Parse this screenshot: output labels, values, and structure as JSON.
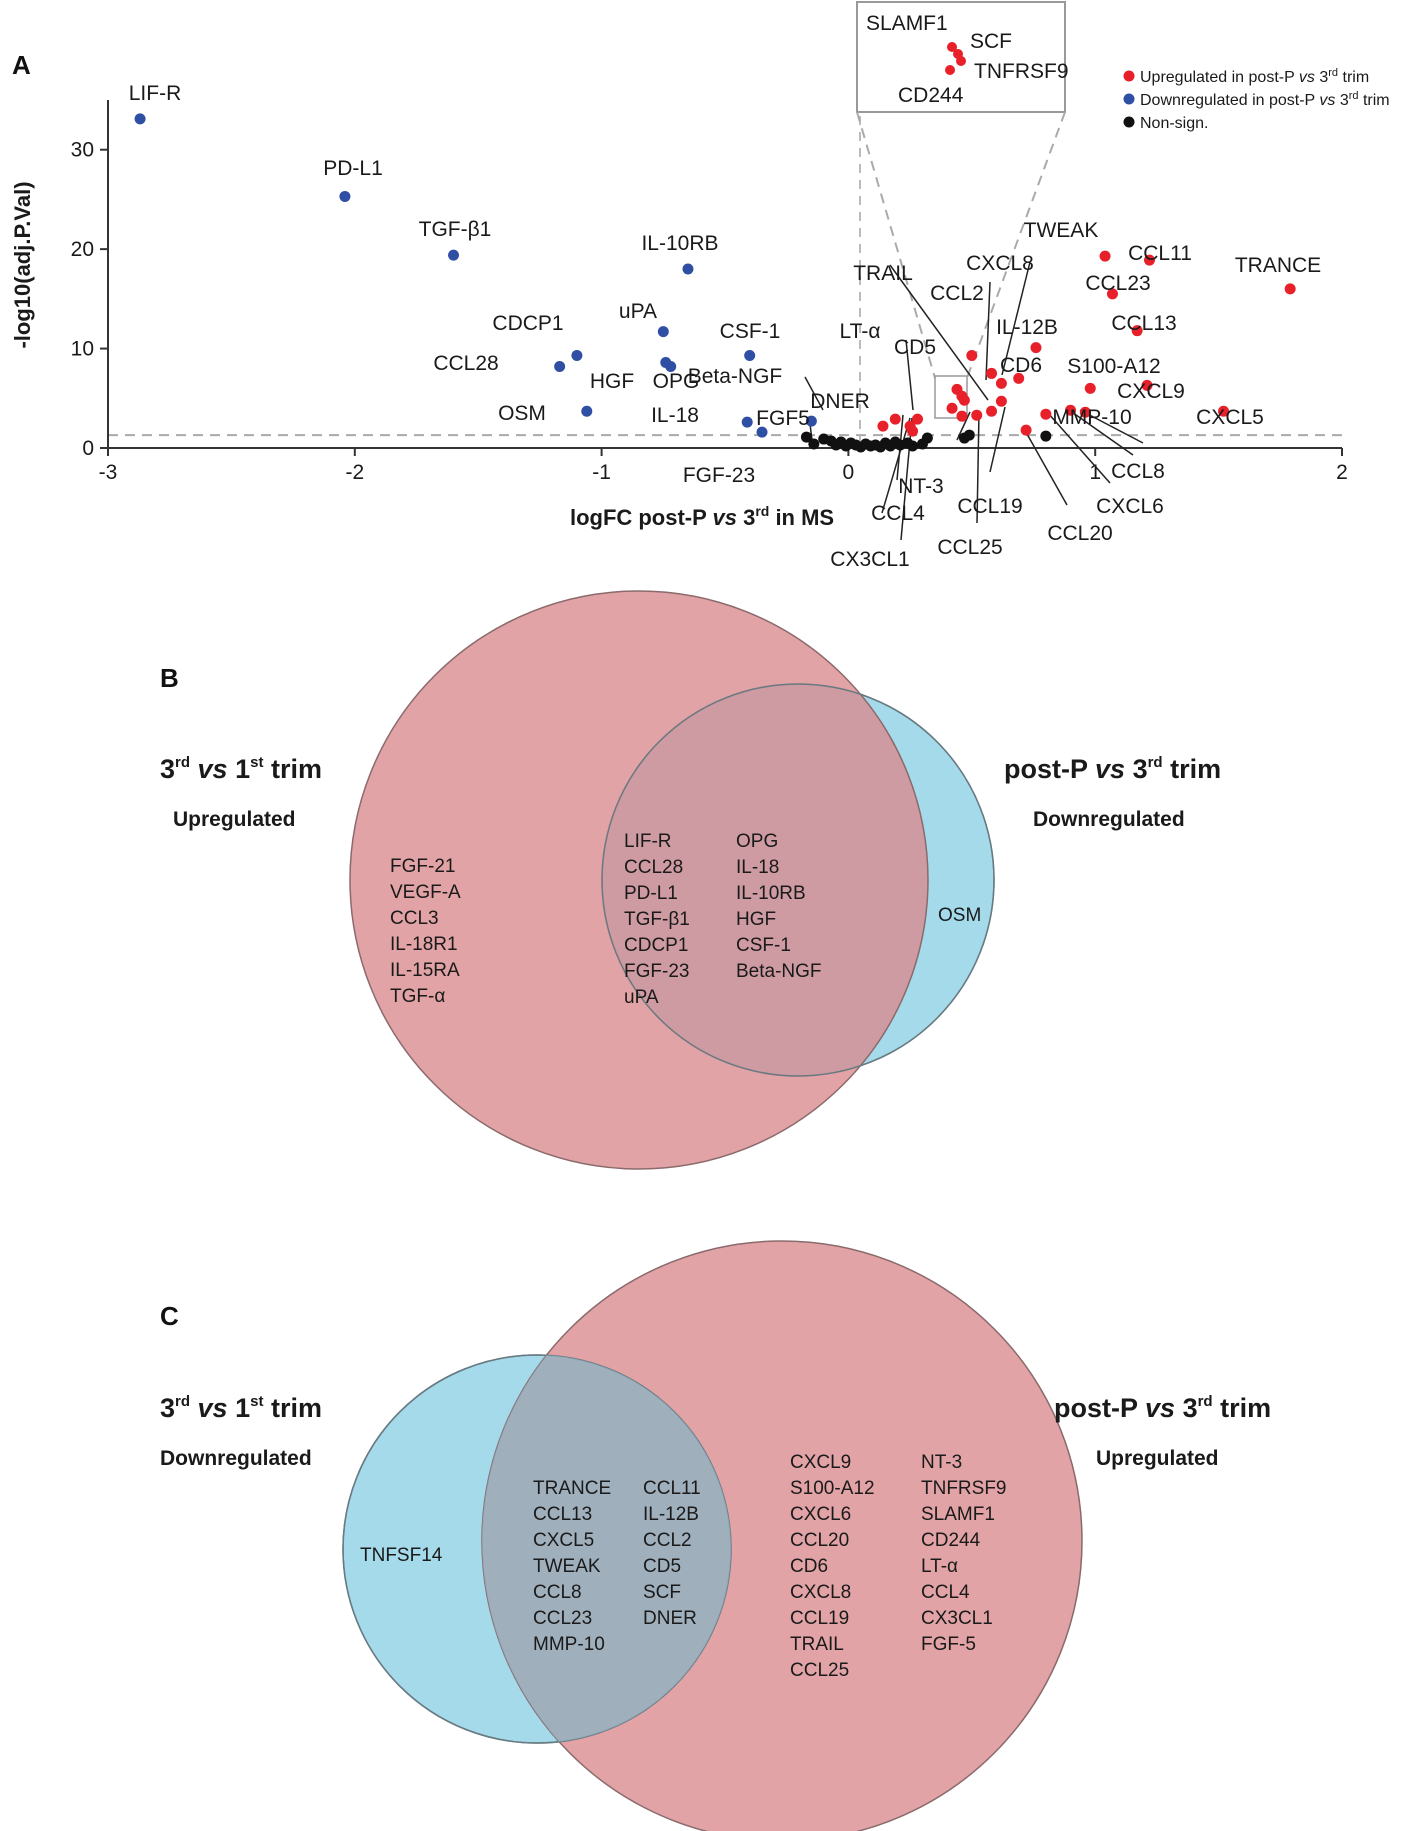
{
  "chart_data": [
    {
      "type": "scatter",
      "panel": "A",
      "xlabel_main": "logFC",
      "xlabel_rest": "post-P vs 3rd in MS",
      "ylabel": "-log10(adj.P.Val)",
      "xlim": [
        -3,
        2
      ],
      "ylim": [
        0,
        35
      ],
      "xticks": [
        -3,
        -2,
        -1,
        0,
        1,
        2
      ],
      "yticks": [
        0,
        10,
        20,
        30
      ],
      "threshold_y": 1.3,
      "legend": [
        {
          "label": "Upregulated in post-P vs 3rd trim",
          "color": "#e8202a"
        },
        {
          "label": "Downregulated in post-P vs 3rd trim",
          "color": "#2e4fa3"
        },
        {
          "label": "Non-sign.",
          "color": "#111111"
        }
      ],
      "inset_labels": [
        "SLAMF1",
        "SCF",
        "TNFRSF9",
        "CD244"
      ],
      "series": [
        {
          "name": "Downregulated",
          "color": "#2e4fa3",
          "points": [
            {
              "label": "LIF-R",
              "x": -2.87,
              "y": 33.1
            },
            {
              "label": "PD-L1",
              "x": -2.04,
              "y": 25.3
            },
            {
              "label": "TGF-β1",
              "x": -1.6,
              "y": 19.4
            },
            {
              "label": "IL-10RB",
              "x": -0.65,
              "y": 18.0
            },
            {
              "label": "uPA",
              "x": -0.75,
              "y": 11.7
            },
            {
              "label": "CDCP1",
              "x": -1.1,
              "y": 9.3
            },
            {
              "label": "CCL28",
              "x": -1.17,
              "y": 8.2
            },
            {
              "label": "HGF",
              "x": -0.74,
              "y": 8.6
            },
            {
              "label": "OPG",
              "x": -0.72,
              "y": 8.2
            },
            {
              "label": "CSF-1",
              "x": -0.4,
              "y": 9.3
            },
            {
              "label": "OSM",
              "x": -1.06,
              "y": 3.7
            },
            {
              "label": "IL-18",
              "x": -0.41,
              "y": 2.6
            },
            {
              "label": "FGF-23",
              "x": -0.35,
              "y": 1.6
            },
            {
              "label": "Beta-NGF",
              "x": -0.15,
              "y": 2.7
            }
          ]
        },
        {
          "name": "Upregulated",
          "color": "#e8202a",
          "points": [
            {
              "label": "TRANCE",
              "x": 1.79,
              "y": 16.0
            },
            {
              "label": "TWEAK",
              "x": 1.04,
              "y": 19.3
            },
            {
              "label": "CCL11",
              "x": 1.22,
              "y": 18.9
            },
            {
              "label": "CCL23",
              "x": 1.07,
              "y": 15.5
            },
            {
              "label": "CCL13",
              "x": 1.17,
              "y": 11.8
            },
            {
              "label": "IL-12B",
              "x": 0.76,
              "y": 10.1
            },
            {
              "label": "S100-A12",
              "x": 0.98,
              "y": 6.0
            },
            {
              "label": "CXCL9",
              "x": 1.21,
              "y": 6.3
            },
            {
              "label": "CXCL5",
              "x": 1.52,
              "y": 3.7
            },
            {
              "label": "MMP-10",
              "x": 0.96,
              "y": 3.6
            },
            {
              "label": "CCL8",
              "x": 0.9,
              "y": 3.8
            },
            {
              "label": "CXCL6",
              "x": 0.8,
              "y": 3.4
            },
            {
              "label": "CCL20",
              "x": 0.72,
              "y": 1.8
            },
            {
              "label": "CCL19",
              "x": 0.62,
              "y": 4.7
            },
            {
              "label": "CCL25",
              "x": 0.58,
              "y": 3.7
            },
            {
              "label": "CD6",
              "x": 0.69,
              "y": 7.0
            },
            {
              "label": "CXCL8",
              "x": 0.62,
              "y": 6.5
            },
            {
              "label": "CCL2",
              "x": 0.58,
              "y": 7.5
            },
            {
              "label": "TRAIL",
              "x": 0.52,
              "y": 3.3
            },
            {
              "label": "CD5",
              "x": 0.5,
              "y": 9.3
            },
            {
              "label": "LT-α",
              "x": 0.28,
              "y": 2.9
            },
            {
              "label": "DNER",
              "x": 0.19,
              "y": 2.9
            },
            {
              "label": "FGF5",
              "x": 0.14,
              "y": 2.2
            },
            {
              "label": "CCL4",
              "x": 0.26,
              "y": 1.7
            },
            {
              "label": "CX3CL1",
              "x": 0.25,
              "y": 2.2
            },
            {
              "label": "NT-3",
              "x": 0.46,
              "y": 3.2
            },
            {
              "label": "SLAMF1",
              "x": 0.44,
              "y": 5.9
            },
            {
              "label": "SCF",
              "x": 0.46,
              "y": 5.2
            },
            {
              "label": "TNFRSF9",
              "x": 0.47,
              "y": 4.8
            },
            {
              "label": "CD244",
              "x": 0.42,
              "y": 4.0
            }
          ]
        },
        {
          "name": "Non-sign.",
          "color": "#111111",
          "points": [
            {
              "x": -0.17,
              "y": 1.1
            },
            {
              "x": -0.14,
              "y": 0.4
            },
            {
              "x": -0.1,
              "y": 0.9
            },
            {
              "x": -0.07,
              "y": 0.7
            },
            {
              "x": -0.05,
              "y": 0.3
            },
            {
              "x": -0.03,
              "y": 0.6
            },
            {
              "x": -0.01,
              "y": 0.2
            },
            {
              "x": 0.01,
              "y": 0.5
            },
            {
              "x": 0.03,
              "y": 0.3
            },
            {
              "x": 0.05,
              "y": 0.1
            },
            {
              "x": 0.07,
              "y": 0.4
            },
            {
              "x": 0.09,
              "y": 0.2
            },
            {
              "x": 0.11,
              "y": 0.3
            },
            {
              "x": 0.13,
              "y": 0.1
            },
            {
              "x": 0.15,
              "y": 0.5
            },
            {
              "x": 0.17,
              "y": 0.2
            },
            {
              "x": 0.19,
              "y": 0.6
            },
            {
              "x": 0.21,
              "y": 0.3
            },
            {
              "x": 0.24,
              "y": 0.5
            },
            {
              "x": 0.26,
              "y": 0.2
            },
            {
              "x": 0.3,
              "y": 0.4
            },
            {
              "x": 0.32,
              "y": 1.0
            },
            {
              "x": 0.47,
              "y": 1.0
            },
            {
              "x": 0.49,
              "y": 1.3
            },
            {
              "x": 0.8,
              "y": 1.2
            }
          ]
        }
      ]
    },
    {
      "type": "venn",
      "panel": "B",
      "left": {
        "title_base": "3",
        "title_sup": "rd",
        "title_mid": " vs 1",
        "title_sup2": "st",
        "title_end": " trim",
        "subtitle": "Upregulated",
        "color": "#d9898c"
      },
      "right": {
        "title_base": "post-P vs 3",
        "title_sup": "rd",
        "title_end": " trim",
        "subtitle": "Downregulated",
        "color": "#94d4e6"
      },
      "left_only": [
        "FGF-21",
        "VEGF-A",
        "CCL3",
        "IL-18R1",
        "IL-15RA",
        "TGF-α"
      ],
      "intersection": [
        [
          "LIF-R",
          "CCL28",
          "PD-L1",
          "TGF-β1",
          "CDCP1",
          "FGF-23",
          "uPA"
        ],
        [
          "OPG",
          "IL-18",
          "IL-10RB",
          "HGF",
          "CSF-1",
          "Beta-NGF"
        ]
      ],
      "right_only": [
        "OSM"
      ]
    },
    {
      "type": "venn",
      "panel": "C",
      "left": {
        "title_base": "3",
        "title_sup": "rd",
        "title_mid": " vs 1",
        "title_sup2": "st",
        "title_end": " trim",
        "subtitle": "Downregulated",
        "color": "#94d4e6"
      },
      "right": {
        "title_base": "post-P vs 3",
        "title_sup": "rd",
        "title_end": " trim",
        "subtitle": "Upregulated",
        "color": "#d9898c"
      },
      "left_only": [
        "TNFSF14"
      ],
      "intersection": [
        [
          "TRANCE",
          "CCL13",
          "CXCL5",
          "TWEAK",
          "CCL8",
          "CCL23",
          "MMP-10"
        ],
        [
          "CCL11",
          "IL-12B",
          "CCL2",
          "CD5",
          "SCF",
          "DNER"
        ]
      ],
      "right_only": [
        [
          "CXCL9",
          "S100-A12",
          "CXCL6",
          "CCL20",
          "CD6",
          "CXCL8",
          "CCL19",
          "TRAIL",
          "CCL25"
        ],
        [
          "NT-3",
          "TNFRSF9",
          "SLAMF1",
          "CD244",
          "LT-α",
          "CCL4",
          "CX3CL1",
          "FGF-5"
        ]
      ]
    }
  ]
}
